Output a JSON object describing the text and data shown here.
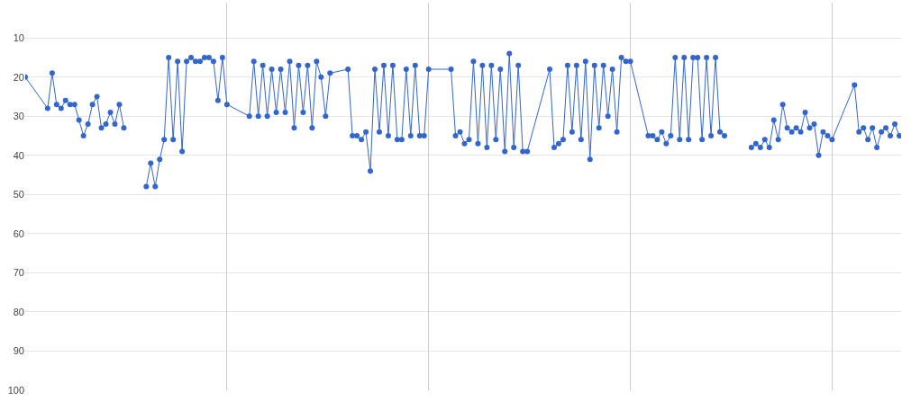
{
  "chart_data": {
    "type": "line",
    "categories": [
      null,
      null,
      null,
      null,
      null,
      null,
      null,
      null,
      null,
      null,
      null,
      null,
      null,
      null,
      null,
      null,
      null,
      null,
      null,
      null,
      null,
      null,
      null,
      null,
      null,
      null,
      null,
      null,
      null,
      null,
      null,
      null,
      null,
      null,
      null,
      null,
      null,
      null,
      null,
      null,
      null,
      null,
      null,
      null,
      null,
      null,
      null,
      null,
      null,
      null,
      null,
      null,
      null,
      null,
      null,
      null,
      null,
      null,
      null,
      null,
      null,
      null,
      null,
      null,
      null,
      null,
      null,
      null,
      null,
      null,
      null,
      null,
      null,
      null,
      null,
      null,
      null,
      null,
      null,
      null,
      null,
      null,
      null,
      null,
      null,
      null,
      null,
      null,
      null,
      null,
      null,
      null,
      null,
      null,
      null,
      null,
      null,
      null,
      null,
      null,
      null,
      null,
      null,
      null,
      null,
      null,
      null,
      null,
      null,
      null,
      null,
      null,
      null,
      null,
      null,
      null,
      null,
      null,
      null,
      null,
      null,
      null,
      null,
      null,
      null,
      null,
      null,
      null,
      null,
      null,
      null,
      null,
      null,
      null,
      null,
      null,
      null,
      null,
      null,
      null,
      null,
      null,
      null,
      null,
      null,
      null,
      null,
      null,
      null,
      null,
      null,
      null,
      null,
      null,
      null,
      null,
      null,
      null,
      null,
      null,
      null,
      null,
      null,
      null,
      null,
      null,
      null,
      null,
      null,
      null,
      null,
      null,
      null,
      null,
      null,
      null,
      null,
      null,
      null,
      null,
      null,
      null,
      null,
      null,
      null,
      null,
      null,
      null,
      null,
      null,
      null,
      null,
      null,
      null,
      null,
      null
    ],
    "series": [
      {
        "color": "#3366cc",
        "values": [
          20,
          null,
          null,
          null,
          null,
          28,
          19,
          27,
          28,
          26,
          27,
          27,
          31,
          35,
          32,
          27,
          25,
          33,
          32,
          29,
          32,
          27,
          33,
          null,
          null,
          null,
          null,
          null,
          null,
          null,
          null,
          null,
          null,
          null,
          null,
          null,
          null,
          null,
          null,
          null,
          null,
          null,
          null,
          null,
          null,
          null,
          null,
          null,
          null,
          null,
          null,
          null,
          null,
          null,
          null,
          null,
          null,
          null,
          null,
          null,
          null,
          null,
          null,
          null,
          null,
          null,
          null,
          null,
          null,
          null,
          null,
          null,
          null,
          null,
          null,
          null,
          null,
          null,
          null,
          null,
          null,
          null,
          null,
          null,
          null,
          null,
          null,
          null,
          null,
          null,
          null,
          null,
          null,
          null,
          null,
          null,
          null,
          null,
          null,
          null,
          null,
          null,
          null,
          null,
          null,
          null,
          null,
          null,
          null,
          null,
          null,
          null,
          null,
          null,
          null,
          null,
          null,
          null,
          null,
          null,
          null,
          null,
          null,
          null,
          null,
          null,
          null,
          null,
          null,
          null,
          null,
          null,
          null,
          null,
          null,
          null,
          null,
          null,
          null,
          null,
          null,
          null,
          null,
          null,
          null,
          null,
          null,
          null,
          null,
          null,
          null,
          null,
          null,
          null,
          null,
          null,
          null,
          null,
          null,
          null,
          null,
          null,
          null,
          null,
          null,
          null,
          null,
          null,
          null,
          null,
          null,
          null,
          null,
          null,
          null,
          null,
          null,
          null,
          null,
          null,
          null,
          null,
          null,
          null,
          null,
          null,
          null,
          null,
          null,
          null,
          null,
          null,
          null,
          null,
          null,
          null
        ]
      },
      {
        "color": "#3366cc",
        "values": [
          null,
          null,
          null,
          null,
          null,
          null,
          null,
          null,
          null,
          null,
          null,
          null,
          null,
          null,
          null,
          null,
          null,
          null,
          null,
          null,
          null,
          null,
          null,
          null,
          null,
          null,
          null,
          48,
          42,
          48,
          41,
          36,
          15,
          36,
          16,
          39,
          16,
          15,
          16,
          16,
          15,
          15,
          16,
          26,
          15,
          27,
          null,
          null,
          null,
          null,
          30,
          16,
          30,
          17,
          30,
          18,
          29,
          18,
          29,
          16,
          33,
          17,
          29,
          17,
          33,
          16,
          20,
          30,
          19,
          null,
          null,
          null,
          18,
          35,
          35,
          36,
          34,
          44,
          18,
          34,
          17,
          35,
          17,
          36,
          36,
          18,
          35,
          17,
          35,
          35,
          18,
          null,
          null,
          null,
          null,
          18,
          35,
          34,
          37,
          36,
          16,
          37,
          17,
          38,
          17,
          36,
          18,
          39,
          14,
          38,
          17,
          39,
          39,
          null,
          null,
          null,
          null,
          18,
          38,
          37,
          36,
          17,
          34,
          17,
          36,
          16,
          41,
          17,
          33,
          17,
          30,
          18,
          34,
          15,
          16,
          16,
          null,
          null,
          null,
          35,
          35,
          36,
          34,
          37,
          35,
          15,
          36,
          15,
          36,
          15,
          15,
          36,
          15,
          35,
          15,
          34,
          35,
          null,
          null,
          null,
          null,
          null,
          null,
          null,
          null,
          null,
          null,
          null,
          null,
          null,
          null,
          null,
          null,
          null,
          null,
          null,
          null,
          null,
          null,
          null,
          null,
          null,
          null,
          null,
          null,
          null,
          null,
          null,
          null,
          null,
          null,
          null,
          null,
          null,
          null,
          null
        ]
      },
      {
        "color": "#3366cc",
        "values": [
          null,
          null,
          null,
          null,
          null,
          null,
          null,
          null,
          null,
          null,
          null,
          null,
          null,
          null,
          null,
          null,
          null,
          null,
          null,
          null,
          null,
          null,
          null,
          null,
          null,
          null,
          null,
          null,
          null,
          null,
          null,
          null,
          null,
          null,
          null,
          null,
          null,
          null,
          null,
          null,
          null,
          null,
          null,
          null,
          null,
          null,
          null,
          null,
          null,
          null,
          null,
          null,
          null,
          null,
          null,
          null,
          null,
          null,
          null,
          null,
          null,
          null,
          null,
          null,
          null,
          null,
          null,
          null,
          null,
          null,
          null,
          null,
          null,
          null,
          null,
          null,
          null,
          null,
          null,
          null,
          null,
          null,
          null,
          null,
          null,
          null,
          null,
          null,
          null,
          null,
          null,
          null,
          null,
          null,
          null,
          null,
          null,
          null,
          null,
          null,
          null,
          null,
          null,
          null,
          null,
          null,
          null,
          null,
          null,
          null,
          null,
          null,
          null,
          null,
          null,
          null,
          null,
          null,
          null,
          null,
          null,
          null,
          null,
          null,
          null,
          null,
          null,
          null,
          null,
          null,
          null,
          null,
          null,
          null,
          null,
          null,
          null,
          null,
          null,
          null,
          null,
          null,
          null,
          null,
          null,
          null,
          null,
          null,
          null,
          null,
          null,
          null,
          null,
          null,
          null,
          null,
          null,
          null,
          null,
          null,
          null,
          null,
          38,
          37,
          38,
          36,
          38,
          31,
          36,
          27,
          33,
          34,
          33,
          34,
          29,
          33,
          32,
          40,
          34,
          35,
          36,
          null,
          null,
          null,
          null,
          22,
          34,
          33,
          36,
          33,
          38,
          34,
          33,
          35,
          32,
          35
        ]
      }
    ],
    "ylim": [
      100,
      1
    ],
    "yticks": [
      10,
      20,
      30,
      40,
      50,
      60,
      70,
      80,
      90,
      100
    ],
    "grid": true,
    "marker": "circle",
    "line_style": "solid"
  }
}
